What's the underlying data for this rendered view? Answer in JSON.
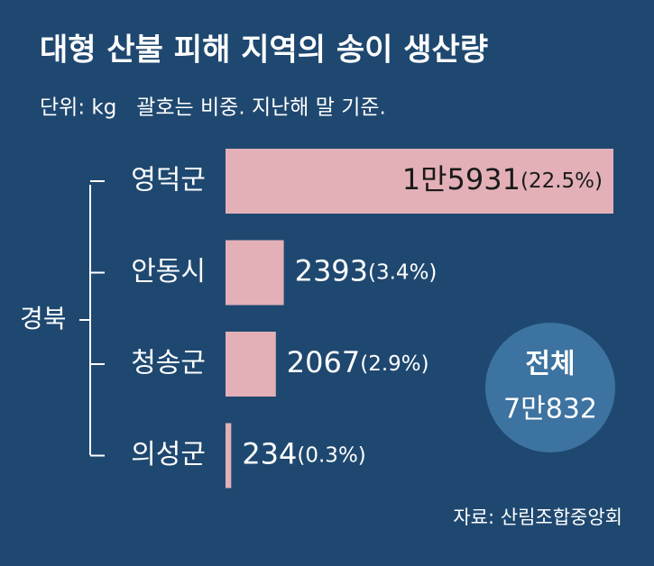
{
  "chart_data": {
    "type": "bar",
    "orientation": "horizontal",
    "title": "대형 산불 피해 지역의 송이 생산량",
    "subtitle": "단위: kg   괄호는 비중. 지난해 말 기준.",
    "group_label": "경북",
    "categories": [
      "영덕군",
      "안동시",
      "청송군",
      "의성군"
    ],
    "values": [
      15931,
      2393,
      2067,
      234
    ],
    "value_labels": [
      "1만5931",
      "2393",
      "2067",
      "234"
    ],
    "share_labels": [
      "(22.5%)",
      "(3.4%)",
      "(2.9%)",
      "(0.3%)"
    ],
    "color": "#e3b0b8",
    "total_label": "전체",
    "total_value": 70832,
    "total_value_label": "7만832",
    "source": "자료: 산림조합중앙회"
  }
}
